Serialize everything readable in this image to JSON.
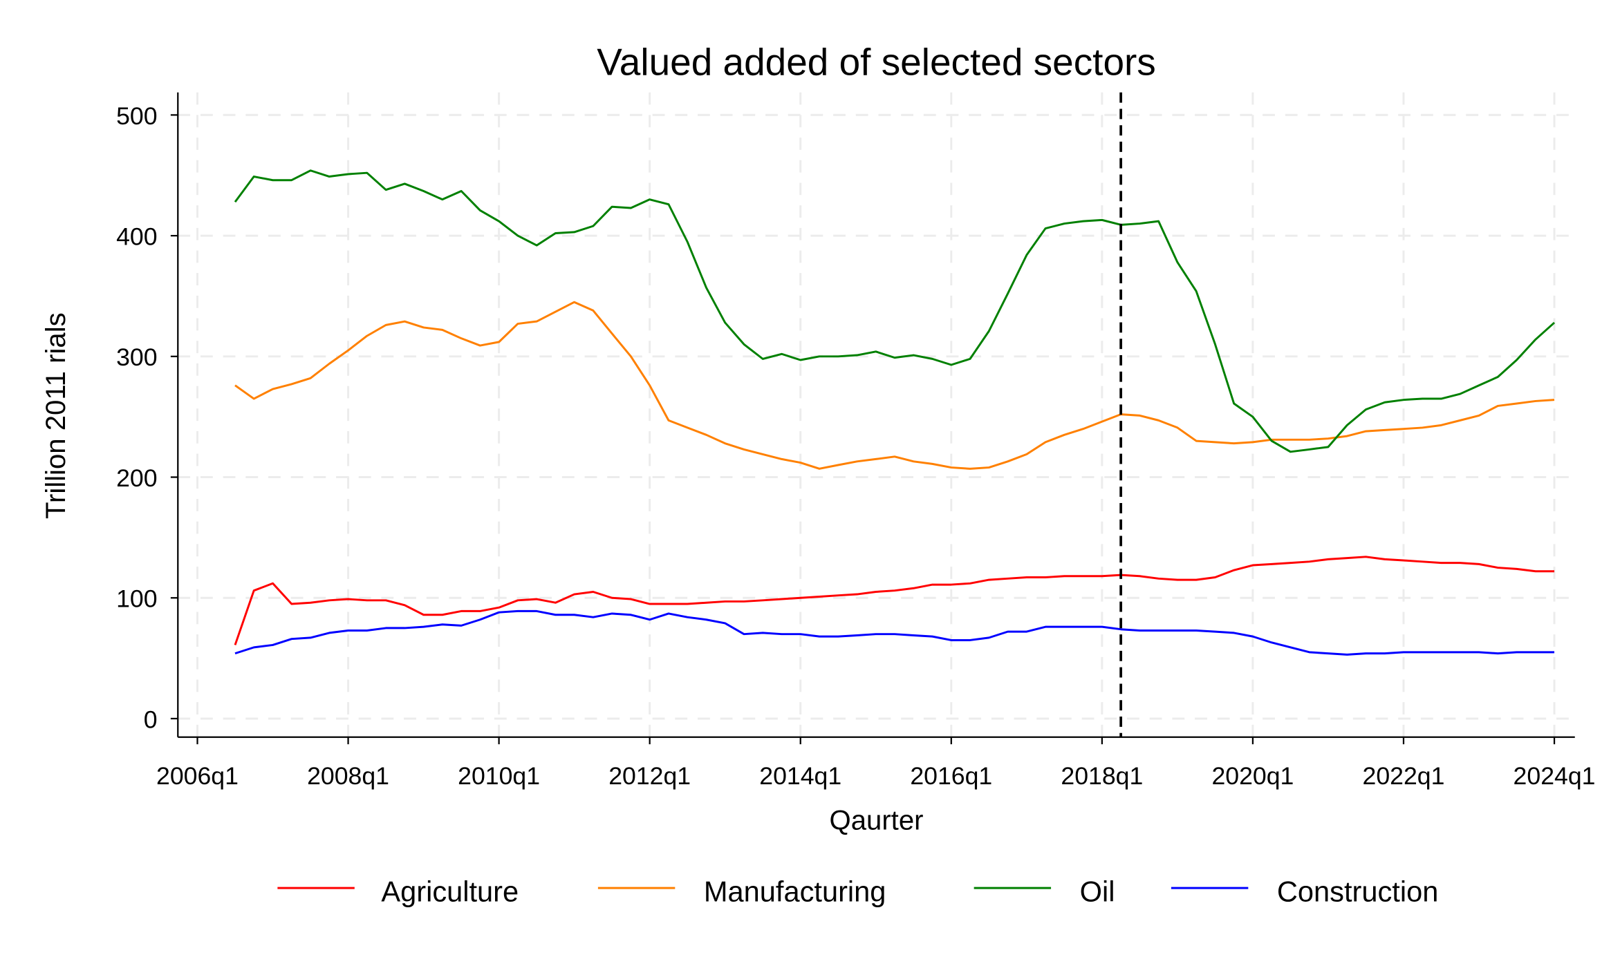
{
  "chart_data": {
    "type": "line",
    "title": "Valued added of selected sectors",
    "xlabel": "Qaurter",
    "ylabel": "Trillion 2011 rials",
    "ylim": [
      0,
      500
    ],
    "yticks": [
      0,
      100,
      200,
      300,
      400,
      500
    ],
    "xticks": [
      "2006q1",
      "2008q1",
      "2010q1",
      "2012q1",
      "2014q1",
      "2016q1",
      "2018q1",
      "2020q1",
      "2022q1",
      "2024q1"
    ],
    "xrange": [
      "2006q1",
      "2024q1"
    ],
    "grid": true,
    "legend_position": "bottom",
    "vertical_reference_line": "2018q2",
    "x": [
      "2006q3",
      "2006q4",
      "2007q1",
      "2007q2",
      "2007q3",
      "2007q4",
      "2008q1",
      "2008q2",
      "2008q3",
      "2008q4",
      "2009q1",
      "2009q2",
      "2009q3",
      "2009q4",
      "2010q1",
      "2010q2",
      "2010q3",
      "2010q4",
      "2011q1",
      "2011q2",
      "2011q3",
      "2011q4",
      "2012q1",
      "2012q2",
      "2012q3",
      "2012q4",
      "2013q1",
      "2013q2",
      "2013q3",
      "2013q4",
      "2014q1",
      "2014q2",
      "2014q3",
      "2014q4",
      "2015q1",
      "2015q2",
      "2015q3",
      "2015q4",
      "2016q1",
      "2016q2",
      "2016q3",
      "2016q4",
      "2017q1",
      "2017q2",
      "2017q3",
      "2017q4",
      "2018q1",
      "2018q2",
      "2018q3",
      "2018q4",
      "2019q1",
      "2019q2",
      "2019q3",
      "2019q4",
      "2020q1",
      "2020q2",
      "2020q3",
      "2020q4",
      "2021q1",
      "2021q2",
      "2021q3",
      "2021q4",
      "2022q1",
      "2022q2",
      "2022q3",
      "2022q4",
      "2023q1",
      "2023q2",
      "2023q3",
      "2023q4",
      "2024q1"
    ],
    "series": [
      {
        "name": "Agriculture",
        "color": "#ff0000",
        "values": [
          61,
          106,
          112,
          95,
          96,
          98,
          99,
          98,
          98,
          94,
          86,
          86,
          89,
          89,
          92,
          98,
          99,
          96,
          103,
          105,
          100,
          99,
          95,
          95,
          95,
          96,
          97,
          97,
          98,
          99,
          100,
          101,
          102,
          103,
          105,
          106,
          108,
          111,
          111,
          112,
          115,
          116,
          117,
          117,
          118,
          118,
          118,
          119,
          118,
          116,
          115,
          115,
          117,
          123,
          127,
          128,
          129,
          130,
          132,
          133,
          134,
          132,
          131,
          130,
          129,
          129,
          128,
          125,
          124,
          122,
          122
        ]
      },
      {
        "name": "Manufacturing",
        "color": "#ff8000",
        "values": [
          276,
          265,
          273,
          277,
          282,
          294,
          305,
          317,
          326,
          329,
          324,
          322,
          315,
          309,
          312,
          327,
          329,
          337,
          345,
          338,
          319,
          300,
          276,
          247,
          241,
          235,
          228,
          223,
          219,
          215,
          212,
          207,
          210,
          213,
          215,
          217,
          213,
          211,
          208,
          207,
          208,
          213,
          219,
          229,
          235,
          240,
          246,
          252,
          251,
          247,
          241,
          230,
          229,
          228,
          229,
          231,
          231,
          231,
          232,
          234,
          238,
          239,
          240,
          241,
          243,
          247,
          251,
          259,
          261,
          263,
          264
        ]
      },
      {
        "name": "Oil",
        "color": "#008000",
        "values": [
          428,
          449,
          446,
          446,
          454,
          449,
          451,
          452,
          438,
          443,
          437,
          430,
          437,
          421,
          412,
          400,
          392,
          402,
          403,
          408,
          424,
          423,
          430,
          426,
          395,
          357,
          328,
          310,
          298,
          302,
          297,
          300,
          300,
          301,
          304,
          299,
          301,
          298,
          293,
          298,
          321,
          352,
          384,
          406,
          410,
          412,
          413,
          409,
          410,
          412,
          378,
          354,
          310,
          261,
          250,
          230,
          221,
          223,
          225,
          243,
          256,
          262,
          264,
          265,
          265,
          269,
          276,
          283,
          297,
          314,
          328
        ]
      },
      {
        "name": "Construction",
        "color": "#0000ff",
        "values": [
          54,
          59,
          61,
          66,
          67,
          71,
          73,
          73,
          75,
          75,
          76,
          78,
          77,
          82,
          88,
          89,
          89,
          86,
          86,
          84,
          87,
          86,
          82,
          87,
          84,
          82,
          79,
          70,
          71,
          70,
          70,
          68,
          68,
          69,
          70,
          70,
          69,
          68,
          65,
          65,
          67,
          72,
          72,
          76,
          76,
          76,
          76,
          74,
          73,
          73,
          73,
          73,
          72,
          71,
          68,
          63,
          59,
          55,
          54,
          53,
          54,
          54,
          55,
          55,
          55,
          55,
          55,
          54,
          55,
          55,
          55
        ]
      }
    ]
  }
}
